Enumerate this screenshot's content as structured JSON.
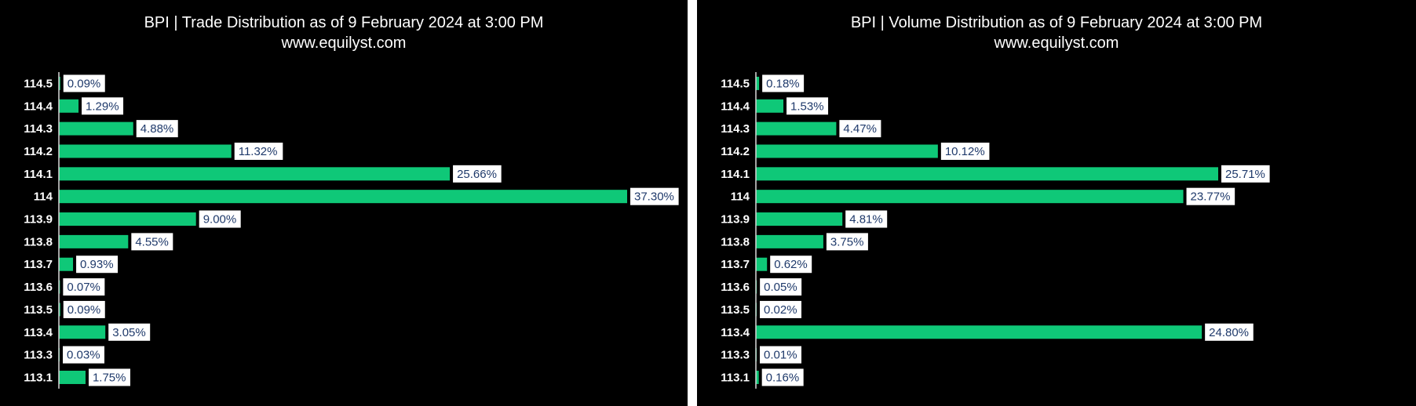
{
  "colors": {
    "background": "#000000",
    "bar": "#0fc878",
    "label_box": "#ffffff",
    "label_text": "#1f3a6b"
  },
  "chart_data": [
    {
      "type": "bar",
      "orientation": "horizontal",
      "title": "BPI | Trade Distribution as of 9 February 2024 at 3:00 PM",
      "subtitle": "www.equilyst.com",
      "categories": [
        "114.5",
        "114.4",
        "114.3",
        "114.2",
        "114.1",
        "114",
        "113.9",
        "113.8",
        "113.7",
        "113.6",
        "113.5",
        "113.4",
        "113.3",
        "113.1"
      ],
      "values": [
        0.09,
        1.29,
        4.88,
        11.32,
        25.66,
        37.3,
        9.0,
        4.55,
        0.93,
        0.07,
        0.09,
        3.05,
        0.03,
        1.75
      ],
      "value_labels": [
        "0.09%",
        "1.29%",
        "4.88%",
        "11.32%",
        "25.66%",
        "37.30%",
        "9.00%",
        "4.55%",
        "0.93%",
        "0.07%",
        "0.09%",
        "3.05%",
        "0.03%",
        "1.75%"
      ],
      "xlim": [
        0,
        37.3
      ],
      "grid": false,
      "legend": "none"
    },
    {
      "type": "bar",
      "orientation": "horizontal",
      "title": "BPI | Volume Distribution as of 9 February 2024 at 3:00 PM",
      "subtitle": "www.equilyst.com",
      "categories": [
        "114.5",
        "114.4",
        "114.3",
        "114.2",
        "114.1",
        "114",
        "113.9",
        "113.8",
        "113.7",
        "113.6",
        "113.5",
        "113.4",
        "113.3",
        "113.1"
      ],
      "values": [
        0.18,
        1.53,
        4.47,
        10.12,
        25.71,
        23.77,
        4.81,
        3.75,
        0.62,
        0.05,
        0.02,
        24.8,
        0.01,
        0.16
      ],
      "value_labels": [
        "0.18%",
        "1.53%",
        "4.47%",
        "10.12%",
        "25.71%",
        "23.77%",
        "4.81%",
        "3.75%",
        "0.62%",
        "0.05%",
        "0.02%",
        "24.80%",
        "0.01%",
        "0.16%"
      ],
      "xlim": [
        0,
        25.71
      ],
      "grid": false,
      "legend": "none"
    }
  ]
}
